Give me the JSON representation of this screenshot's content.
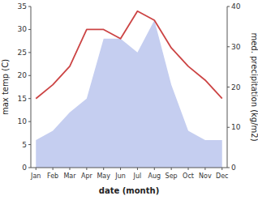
{
  "chart_data": {
    "type": "line",
    "categories": [
      "Jan",
      "Feb",
      "Mar",
      "Apr",
      "May",
      "Jun",
      "Jul",
      "Aug",
      "Sep",
      "Oct",
      "Nov",
      "Dec"
    ],
    "series": [
      {
        "type": "area",
        "color": "#c5cef0",
        "values": [
          6,
          8,
          12,
          15,
          28,
          28,
          25,
          32,
          18,
          8,
          6,
          6
        ]
      },
      {
        "type": "line",
        "color": "#cc4444",
        "values": [
          15,
          18,
          22,
          30,
          30,
          28,
          34,
          32,
          26,
          22,
          19,
          15
        ]
      }
    ],
    "ylim": [
      0,
      35
    ],
    "yticks": [
      0,
      5,
      10,
      15,
      20,
      25,
      30,
      35
    ],
    "y2lim": [
      0,
      40
    ],
    "y2ticks": [
      0,
      10,
      20,
      30,
      40
    ],
    "y_label": "max temp (C)",
    "y2_label": "med. precipitation (kg/m2)",
    "x_label": "date (month)",
    "grid": false
  }
}
